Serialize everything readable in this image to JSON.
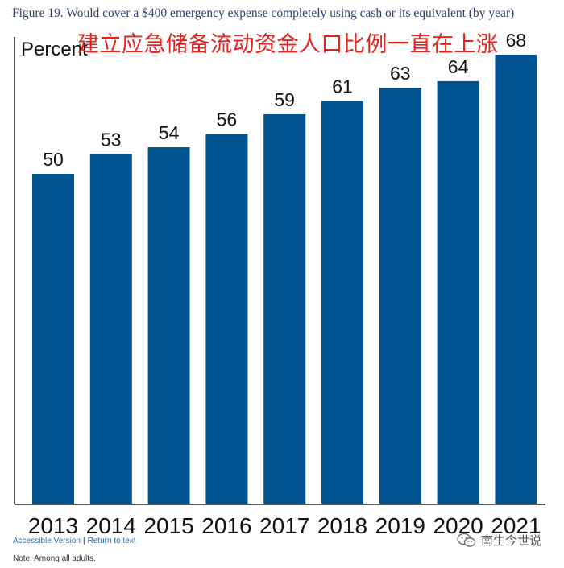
{
  "title": "Figure 19. Would cover a $400 emergency expense completely using cash or its equivalent (by year)",
  "overlay_text": "建立应急储备流动资金人口比例一直在上涨",
  "links": {
    "accessible": "Accessible Version",
    "separator": "|",
    "return": "Return to text"
  },
  "note": "Note: Among all adults.",
  "watermark": {
    "icon": "wechat-icon",
    "text": "南生今世说"
  },
  "colors": {
    "bar": "#00548f",
    "overlay": "#e8211d",
    "title": "#2b3f6b"
  },
  "chart_data": {
    "type": "bar",
    "title": "Figure 19. Would cover a $400 emergency expense completely using cash or its equivalent (by year)",
    "ylabel": "Percent",
    "xlabel": "",
    "categories": [
      "2013",
      "2014",
      "2015",
      "2016",
      "2017",
      "2018",
      "2019",
      "2020",
      "2021"
    ],
    "values": [
      50,
      53,
      54,
      56,
      59,
      61,
      63,
      64,
      68
    ],
    "ylim": [
      0,
      68
    ],
    "grid": false,
    "data_labels": true
  }
}
